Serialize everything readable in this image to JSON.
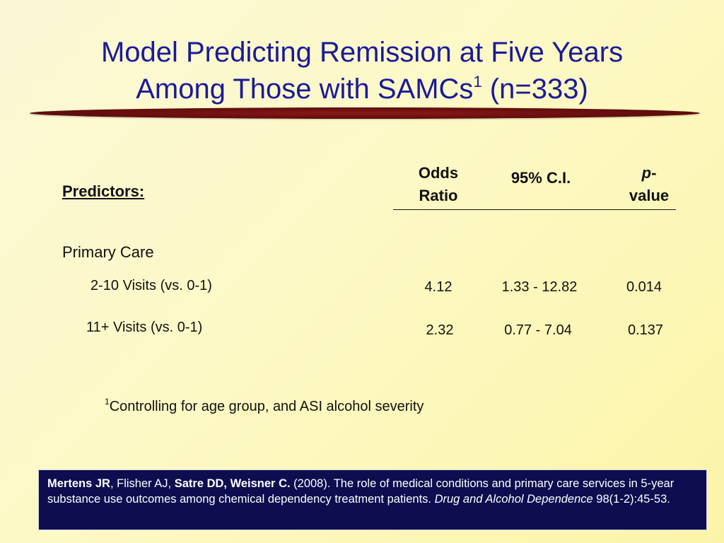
{
  "title": {
    "line1": "Model Predicting Remission at Five Years",
    "line2_pre": "Among Those with SAMCs",
    "line2_sup": "1",
    "line2_post": " (n=333)"
  },
  "table": {
    "predictors_label": "Predictors:",
    "headers": {
      "odds_ratio_1": "Odds",
      "odds_ratio_2": "Ratio",
      "ci": "95% C.I.",
      "p_italic": "p",
      "p_dash": "-",
      "p_value": "value"
    },
    "group_label": "Primary Care",
    "rows": [
      {
        "label": "2-10 Visits (vs. 0-1)",
        "odds_ratio": "4.12",
        "ci": "1.33 - 12.82",
        "p_value": "0.014"
      },
      {
        "label": "11+ Visits (vs. 0-1)",
        "odds_ratio": "2.32",
        "ci": "0.77 - 7.04",
        "p_value": "0.137"
      }
    ]
  },
  "footnote": {
    "marker": "1",
    "text": "Controlling for age group, and ASI alcohol severity"
  },
  "citation": {
    "author1": "Mertens JR",
    "sep1": ", Flisher AJ, ",
    "authors2": "Satre DD, Weisner C.",
    "text": " (2008). The role of medical conditions and primary care services in 5-year substance use outcomes among chemical dependency treatment patients. ",
    "journal": "Drug and Alcohol Dependence",
    "volume": " 98(1-2):45-53."
  },
  "colors": {
    "title": "#1a1a9a",
    "divider": "#6e0f10",
    "citation_bg": "#0d0d4f"
  }
}
